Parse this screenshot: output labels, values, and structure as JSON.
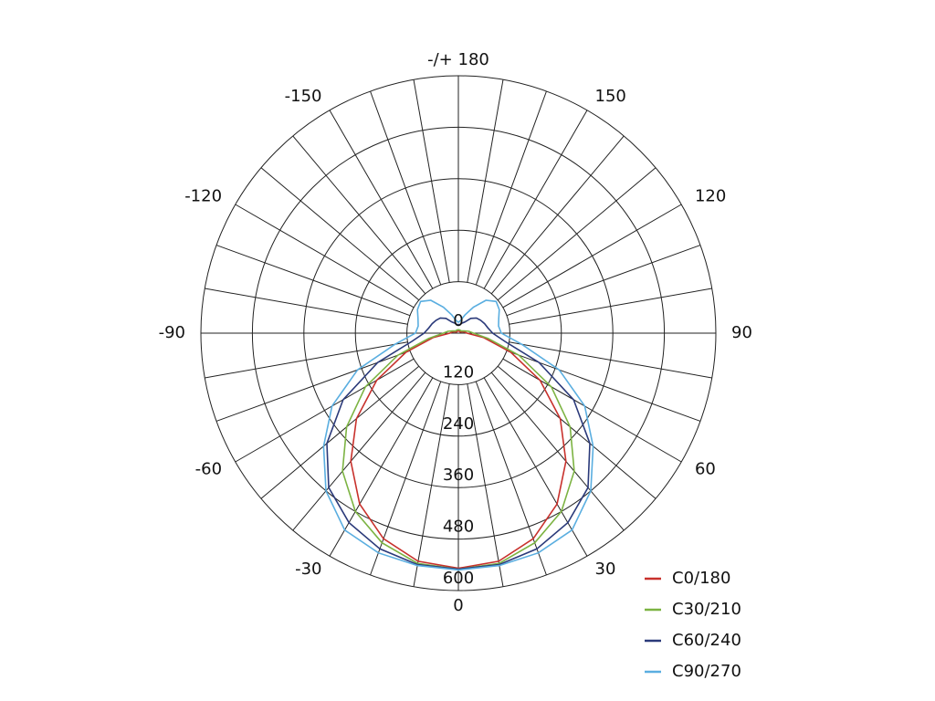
{
  "chart_data": {
    "type": "polar",
    "rlim": [
      0,
      600
    ],
    "rticks": [
      0,
      120,
      240,
      360,
      480,
      600
    ],
    "thetaticks": [
      {
        "value": 180,
        "label": "-/+ 180"
      },
      -150,
      -120,
      -90,
      -60,
      -30,
      0,
      30,
      60,
      90,
      120,
      150
    ],
    "theta": [
      -180,
      -170,
      -160,
      -150,
      -140,
      -130,
      -120,
      -110,
      -100,
      -90,
      -80,
      -70,
      -60,
      -50,
      -40,
      -30,
      -20,
      -10,
      0,
      10,
      20,
      30,
      40,
      50,
      60,
      70,
      80,
      90,
      100,
      110,
      120,
      130,
      140,
      150,
      160,
      170,
      180
    ],
    "legend": "lower right",
    "series": [
      {
        "name": "C0/180",
        "color": "#c8312c",
        "values": [
          5,
          5,
          5,
          5,
          5,
          5,
          5,
          10,
          15,
          20,
          60,
          130,
          220,
          310,
          390,
          460,
          510,
          540,
          548,
          540,
          510,
          460,
          390,
          310,
          220,
          130,
          60,
          20,
          15,
          10,
          5,
          5,
          5,
          5,
          5,
          5,
          5
        ]
      },
      {
        "name": "C30/210",
        "color": "#7cb342",
        "values": [
          8,
          8,
          8,
          8,
          8,
          8,
          10,
          15,
          25,
          35,
          70,
          150,
          250,
          340,
          420,
          480,
          520,
          545,
          550,
          545,
          520,
          480,
          420,
          340,
          250,
          150,
          70,
          35,
          25,
          15,
          10,
          8,
          8,
          8,
          8,
          8,
          8
        ]
      },
      {
        "name": "C60/240",
        "color": "#2b3a7a",
        "values": [
          20,
          20,
          25,
          30,
          45,
          55,
          60,
          65,
          70,
          80,
          110,
          200,
          310,
          400,
          470,
          510,
          535,
          548,
          550,
          548,
          535,
          510,
          470,
          400,
          310,
          200,
          110,
          80,
          70,
          65,
          60,
          55,
          45,
          30,
          25,
          20,
          20
        ]
      },
      {
        "name": "C90/270",
        "color": "#5aaee0",
        "values": [
          25,
          30,
          45,
          70,
          100,
          115,
          110,
          100,
          95,
          100,
          150,
          250,
          340,
          410,
          480,
          530,
          545,
          550,
          552,
          550,
          545,
          530,
          480,
          410,
          340,
          250,
          150,
          100,
          95,
          100,
          110,
          115,
          100,
          70,
          45,
          30,
          25
        ]
      }
    ]
  }
}
